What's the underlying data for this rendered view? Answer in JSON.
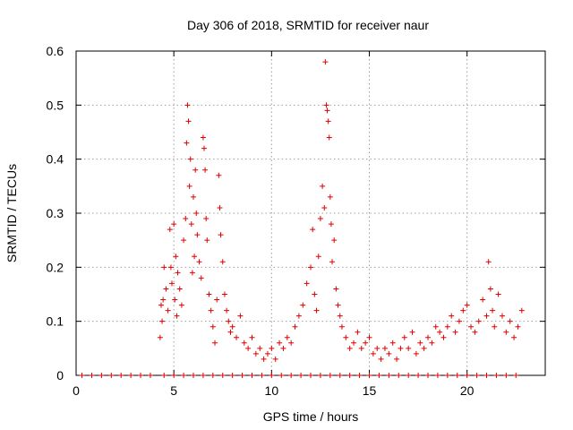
{
  "chart_data": {
    "type": "scatter",
    "title": "Day 306 of 2018, SRMTID for receiver naur",
    "xlabel": "GPS time / hours",
    "ylabel": "SRMTID / TECUs",
    "xlim": [
      0,
      24
    ],
    "ylim": [
      0,
      0.6
    ],
    "xticks": [
      0,
      5,
      10,
      15,
      20
    ],
    "yticks": [
      0,
      0.1,
      0.2,
      0.3,
      0.4,
      0.5,
      0.6
    ],
    "ytick_labels": [
      "0",
      "0.1",
      "0.2",
      "0.3",
      "0.4",
      "0.5",
      "0.6"
    ],
    "grid": true,
    "marker": "+",
    "color": "#e00000",
    "series": [
      {
        "name": "SRMTID",
        "points": [
          [
            4.3,
            0.07
          ],
          [
            4.35,
            0.13
          ],
          [
            4.4,
            0.1
          ],
          [
            4.45,
            0.14
          ],
          [
            4.5,
            0.2
          ],
          [
            4.6,
            0.16
          ],
          [
            4.7,
            0.12
          ],
          [
            4.8,
            0.27
          ],
          [
            4.85,
            0.2
          ],
          [
            4.9,
            0.17
          ],
          [
            5.0,
            0.28
          ],
          [
            5.05,
            0.14
          ],
          [
            5.1,
            0.22
          ],
          [
            5.15,
            0.11
          ],
          [
            5.2,
            0.19
          ],
          [
            5.3,
            0.16
          ],
          [
            5.4,
            0.13
          ],
          [
            5.5,
            0.25
          ],
          [
            5.6,
            0.29
          ],
          [
            5.65,
            0.43
          ],
          [
            5.7,
            0.5
          ],
          [
            5.75,
            0.47
          ],
          [
            5.8,
            0.35
          ],
          [
            5.85,
            0.4
          ],
          [
            5.9,
            0.28
          ],
          [
            5.95,
            0.19
          ],
          [
            6.0,
            0.33
          ],
          [
            6.05,
            0.22
          ],
          [
            6.1,
            0.38
          ],
          [
            6.15,
            0.3
          ],
          [
            6.2,
            0.26
          ],
          [
            6.3,
            0.21
          ],
          [
            6.4,
            0.18
          ],
          [
            6.5,
            0.44
          ],
          [
            6.55,
            0.42
          ],
          [
            6.6,
            0.38
          ],
          [
            6.65,
            0.29
          ],
          [
            6.7,
            0.25
          ],
          [
            6.8,
            0.15
          ],
          [
            6.9,
            0.12
          ],
          [
            7.0,
            0.09
          ],
          [
            7.1,
            0.06
          ],
          [
            7.2,
            0.14
          ],
          [
            7.3,
            0.37
          ],
          [
            7.35,
            0.31
          ],
          [
            7.4,
            0.26
          ],
          [
            7.5,
            0.21
          ],
          [
            7.6,
            0.15
          ],
          [
            7.7,
            0.12
          ],
          [
            7.8,
            0.1
          ],
          [
            7.9,
            0.08
          ],
          [
            8.0,
            0.09
          ],
          [
            8.2,
            0.07
          ],
          [
            8.4,
            0.11
          ],
          [
            8.6,
            0.06
          ],
          [
            8.8,
            0.05
          ],
          [
            9.0,
            0.07
          ],
          [
            9.2,
            0.04
          ],
          [
            9.4,
            0.05
          ],
          [
            9.6,
            0.03
          ],
          [
            9.8,
            0.04
          ],
          [
            10.0,
            0.05
          ],
          [
            10.2,
            0.03
          ],
          [
            10.4,
            0.06
          ],
          [
            10.6,
            0.05
          ],
          [
            10.8,
            0.07
          ],
          [
            11.0,
            0.06
          ],
          [
            11.2,
            0.09
          ],
          [
            11.4,
            0.11
          ],
          [
            11.6,
            0.13
          ],
          [
            11.8,
            0.17
          ],
          [
            12.0,
            0.2
          ],
          [
            12.1,
            0.27
          ],
          [
            12.2,
            0.15
          ],
          [
            12.3,
            0.12
          ],
          [
            12.4,
            0.22
          ],
          [
            12.5,
            0.29
          ],
          [
            12.6,
            0.35
          ],
          [
            12.7,
            0.31
          ],
          [
            12.75,
            0.58
          ],
          [
            12.8,
            0.5
          ],
          [
            12.85,
            0.49
          ],
          [
            12.9,
            0.47
          ],
          [
            12.95,
            0.44
          ],
          [
            13.0,
            0.33
          ],
          [
            13.05,
            0.28
          ],
          [
            13.1,
            0.21
          ],
          [
            13.2,
            0.25
          ],
          [
            13.3,
            0.16
          ],
          [
            13.4,
            0.13
          ],
          [
            13.5,
            0.11
          ],
          [
            13.6,
            0.09
          ],
          [
            13.8,
            0.07
          ],
          [
            14.0,
            0.05
          ],
          [
            14.2,
            0.06
          ],
          [
            14.4,
            0.08
          ],
          [
            14.6,
            0.05
          ],
          [
            14.8,
            0.06
          ],
          [
            15.0,
            0.07
          ],
          [
            15.2,
            0.04
          ],
          [
            15.4,
            0.05
          ],
          [
            15.6,
            0.03
          ],
          [
            15.8,
            0.05
          ],
          [
            16.0,
            0.04
          ],
          [
            16.2,
            0.06
          ],
          [
            16.4,
            0.03
          ],
          [
            16.6,
            0.05
          ],
          [
            16.8,
            0.07
          ],
          [
            17.0,
            0.05
          ],
          [
            17.2,
            0.08
          ],
          [
            17.4,
            0.04
          ],
          [
            17.6,
            0.06
          ],
          [
            17.8,
            0.05
          ],
          [
            18.0,
            0.07
          ],
          [
            18.2,
            0.06
          ],
          [
            18.4,
            0.09
          ],
          [
            18.6,
            0.08
          ],
          [
            18.8,
            0.07
          ],
          [
            19.0,
            0.09
          ],
          [
            19.2,
            0.11
          ],
          [
            19.4,
            0.08
          ],
          [
            19.6,
            0.1
          ],
          [
            19.8,
            0.12
          ],
          [
            20.0,
            0.13
          ],
          [
            20.2,
            0.09
          ],
          [
            20.4,
            0.08
          ],
          [
            20.6,
            0.1
          ],
          [
            20.8,
            0.14
          ],
          [
            21.0,
            0.11
          ],
          [
            21.1,
            0.21
          ],
          [
            21.2,
            0.16
          ],
          [
            21.3,
            0.12
          ],
          [
            21.4,
            0.09
          ],
          [
            21.6,
            0.15
          ],
          [
            21.8,
            0.11
          ],
          [
            22.0,
            0.08
          ],
          [
            22.2,
            0.1
          ],
          [
            22.4,
            0.07
          ],
          [
            22.6,
            0.09
          ],
          [
            22.8,
            0.12
          ],
          [
            4.5,
            0.0
          ],
          [
            5.0,
            0.0
          ],
          [
            5.5,
            0.0
          ],
          [
            6.0,
            0.0
          ],
          [
            6.5,
            0.0
          ],
          [
            7.0,
            0.0
          ],
          [
            7.5,
            0.0
          ],
          [
            8.0,
            0.0
          ],
          [
            8.5,
            0.0
          ],
          [
            9.0,
            0.0
          ],
          [
            9.5,
            0.0
          ],
          [
            10.0,
            0.0
          ],
          [
            10.5,
            0.0
          ],
          [
            11.0,
            0.0
          ],
          [
            11.5,
            0.0
          ],
          [
            12.0,
            0.0
          ],
          [
            12.5,
            0.0
          ],
          [
            13.0,
            0.0
          ],
          [
            13.5,
            0.0
          ],
          [
            14.0,
            0.0
          ],
          [
            14.5,
            0.0
          ],
          [
            15.0,
            0.0
          ],
          [
            15.5,
            0.0
          ],
          [
            16.0,
            0.0
          ],
          [
            16.5,
            0.0
          ],
          [
            17.0,
            0.0
          ],
          [
            17.5,
            0.0
          ],
          [
            18.0,
            0.0
          ],
          [
            18.5,
            0.0
          ],
          [
            19.0,
            0.0
          ],
          [
            19.5,
            0.0
          ],
          [
            20.0,
            0.0
          ],
          [
            20.5,
            0.0
          ],
          [
            21.0,
            0.0
          ],
          [
            21.5,
            0.0
          ],
          [
            22.0,
            0.0
          ],
          [
            22.5,
            0.0
          ],
          [
            0.3,
            0.0
          ],
          [
            0.8,
            0.0
          ],
          [
            1.3,
            0.0
          ],
          [
            1.8,
            0.0
          ],
          [
            2.3,
            0.0
          ],
          [
            2.8,
            0.0
          ],
          [
            3.3,
            0.0
          ],
          [
            3.8,
            0.0
          ]
        ]
      }
    ]
  }
}
